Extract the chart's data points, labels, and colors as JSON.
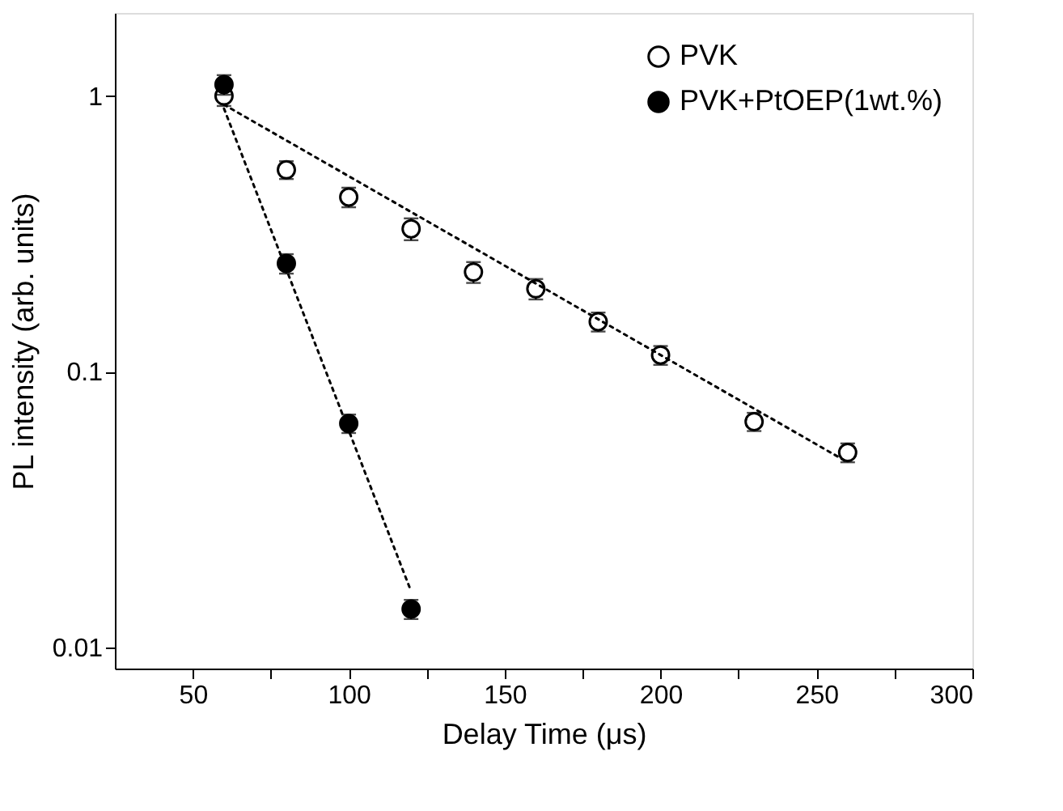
{
  "chart_data": {
    "type": "scatter",
    "xlabel": "Delay Time (μs)",
    "ylabel": "PL intensity (arb. units)",
    "log": "y",
    "xlim": [
      25,
      300
    ],
    "xticks": [
      50,
      {
        "value": 75,
        "label": null
      },
      100,
      {
        "value": 125,
        "label": null
      },
      150,
      {
        "value": 175,
        "label": null
      },
      200,
      {
        "value": 225,
        "label": null
      },
      250,
      {
        "value": 275,
        "label": null
      },
      300
    ],
    "ylim": [
      0.0084,
      2.0
    ],
    "yticks": [
      0.01,
      0.1,
      1
    ],
    "grid": false,
    "legend": "top right",
    "marker": "circle",
    "series": [
      {
        "name": "PVK",
        "color": "#000000",
        "x": [
          60,
          80,
          100,
          120,
          140,
          160,
          180,
          200,
          230,
          260
        ],
        "values": [
          1.0,
          0.54,
          0.43,
          0.33,
          0.23,
          0.2,
          0.152,
          0.115,
          0.066,
          0.051
        ],
        "errors": [
          0.08,
          0.04,
          0.035,
          0.03,
          0.02,
          0.017,
          0.012,
          0.009,
          0.005,
          0.004
        ]
      },
      {
        "name": "PVK+PtOEP(1wt.%)",
        "color": "#000000",
        "x": [
          60,
          80,
          100,
          120
        ],
        "values": [
          1.1,
          0.247,
          0.065,
          0.0138
        ],
        "errors": [
          0.09,
          0.02,
          0.005,
          0.0011
        ]
      },
      {
        "type": "line",
        "line_style": "dotted",
        "marker": "none",
        "color": "#000000",
        "x": [
          60,
          260
        ],
        "values": [
          0.93,
          0.047
        ]
      },
      {
        "type": "line",
        "line_style": "dotted",
        "marker": "none",
        "color": "#000000",
        "x": [
          60,
          120
        ],
        "values": [
          0.9,
          0.016
        ]
      }
    ]
  }
}
